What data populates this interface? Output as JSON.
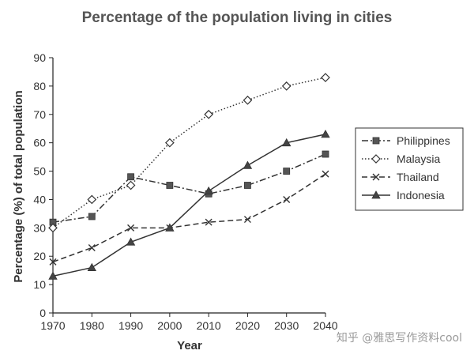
{
  "chart_data": {
    "type": "line",
    "title": "Percentage of the population living in cities",
    "xlabel": "Year",
    "ylabel": "Percentage (%) of total population",
    "x": [
      1970,
      1980,
      1990,
      2000,
      2010,
      2020,
      2030,
      2040
    ],
    "ylim": [
      0,
      90
    ],
    "yticks": [
      0,
      10,
      20,
      30,
      40,
      50,
      60,
      70,
      80,
      90
    ],
    "grid": false,
    "legend_position": "right",
    "series": [
      {
        "name": "Philippines",
        "marker": "square",
        "dash": "dash-dot",
        "values": [
          32,
          34,
          48,
          45,
          42,
          45,
          50,
          56
        ]
      },
      {
        "name": "Malaysia",
        "marker": "diamond-open",
        "dash": "dotted",
        "values": [
          30,
          40,
          45,
          60,
          70,
          75,
          80,
          83
        ]
      },
      {
        "name": "Thailand",
        "marker": "x",
        "dash": "dashed",
        "values": [
          18,
          23,
          30,
          30,
          32,
          33,
          40,
          49
        ]
      },
      {
        "name": "Indonesia",
        "marker": "triangle",
        "dash": "solid",
        "values": [
          13,
          16,
          25,
          30,
          43,
          52,
          60,
          63
        ]
      }
    ]
  },
  "watermark": "知乎 @雅思写作资料cool"
}
